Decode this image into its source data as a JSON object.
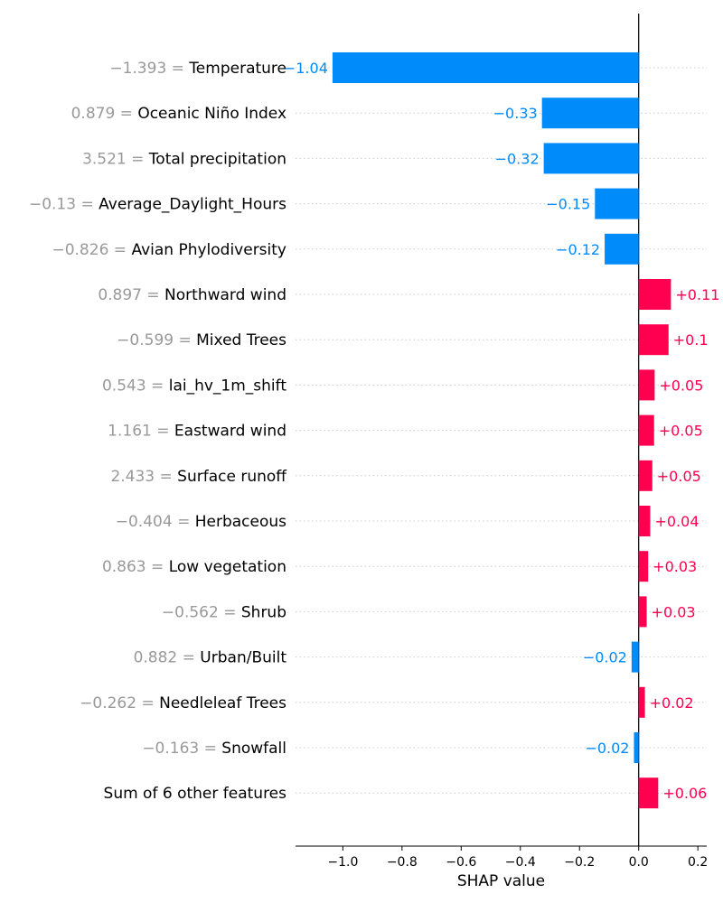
{
  "chart_data": {
    "type": "bar",
    "title": "",
    "xlabel": "SHAP value",
    "ylabel": "",
    "xlim": [
      -1.16,
      0.23
    ],
    "xticks": [
      {
        "value": -1.0,
        "label": "−1.0"
      },
      {
        "value": -0.8,
        "label": "−0.8"
      },
      {
        "value": -0.6,
        "label": "−0.6"
      },
      {
        "value": -0.4,
        "label": "−0.4"
      },
      {
        "value": -0.2,
        "label": "−0.2"
      },
      {
        "value": 0.0,
        "label": "0.0"
      },
      {
        "value": 0.2,
        "label": "0.2"
      }
    ],
    "colors": {
      "positive": "#ff0051",
      "negative": "#008bfb",
      "feature_value": "#999999",
      "gridline": "#cccccc"
    },
    "features": [
      {
        "value_text": "−1.393 =",
        "name": "Temperature",
        "shap": -1.035,
        "label": "−1.04"
      },
      {
        "value_text": "0.879 =",
        "name": "Oceanic Niño Index",
        "shap": -0.327,
        "label": "−0.33"
      },
      {
        "value_text": "3.521 =",
        "name": "Total precipitation",
        "shap": -0.321,
        "label": "−0.32"
      },
      {
        "value_text": "−0.13 =",
        "name": "Average_Daylight_Hours",
        "shap": -0.148,
        "label": "−0.15"
      },
      {
        "value_text": "−0.826 =",
        "name": "Avian Phylodiversity",
        "shap": -0.115,
        "label": "−0.12"
      },
      {
        "value_text": "0.897 =",
        "name": "Northward wind",
        "shap": 0.109,
        "label": "+0.11"
      },
      {
        "value_text": "−0.599 =",
        "name": "Mixed Trees",
        "shap": 0.101,
        "label": "+0.1"
      },
      {
        "value_text": "0.543 =",
        "name": "lai_hv_1m_shift",
        "shap": 0.054,
        "label": "+0.05"
      },
      {
        "value_text": "1.161 =",
        "name": "Eastward wind",
        "shap": 0.052,
        "label": "+0.05"
      },
      {
        "value_text": "2.433 =",
        "name": "Surface runoff",
        "shap": 0.046,
        "label": "+0.05"
      },
      {
        "value_text": "−0.404 =",
        "name": "Herbaceous",
        "shap": 0.039,
        "label": "+0.04"
      },
      {
        "value_text": "0.863 =",
        "name": "Low vegetation",
        "shap": 0.032,
        "label": "+0.03"
      },
      {
        "value_text": "−0.562 =",
        "name": "Shrub",
        "shap": 0.027,
        "label": "+0.03"
      },
      {
        "value_text": "0.882 =",
        "name": "Urban/Built",
        "shap": -0.024,
        "label": "−0.02"
      },
      {
        "value_text": "−0.262 =",
        "name": "Needleleaf Trees",
        "shap": 0.021,
        "label": "+0.02"
      },
      {
        "value_text": "−0.163 =",
        "name": "Snowfall",
        "shap": -0.016,
        "label": "−0.02"
      },
      {
        "value_text": "",
        "name": "Sum of 6 other features",
        "shap": 0.066,
        "label": "+0.06"
      }
    ]
  }
}
